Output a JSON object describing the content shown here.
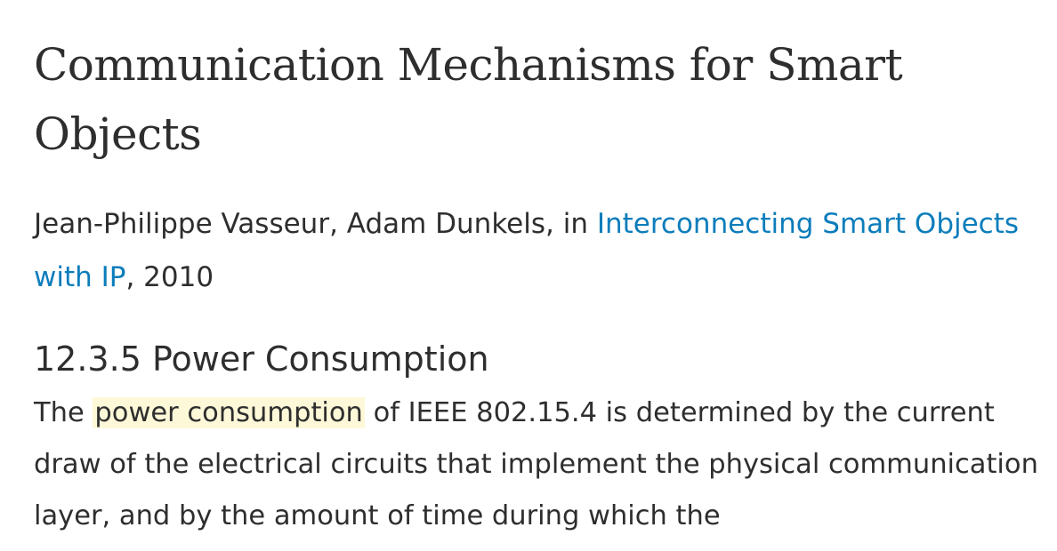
{
  "title": "Communication Mechanisms for Smart Objects",
  "byline": {
    "authors": "Jean-Philippe Vasseur, Adam Dunkels, in ",
    "book_link": "Interconnecting Smart Objects with IP",
    "year": ", 2010"
  },
  "section": {
    "heading": "12.3.5 Power Consumption",
    "text_before": "The ",
    "highlight": "power consumption",
    "text_after": " of IEEE 802.15.4 is determined by the current draw of the electrical circuits that implement the physical communication layer, and by the amount of time during which the"
  },
  "colors": {
    "link": "#0c7dbb",
    "highlight": "#fdf8d8",
    "text": "#2e2e2e"
  }
}
